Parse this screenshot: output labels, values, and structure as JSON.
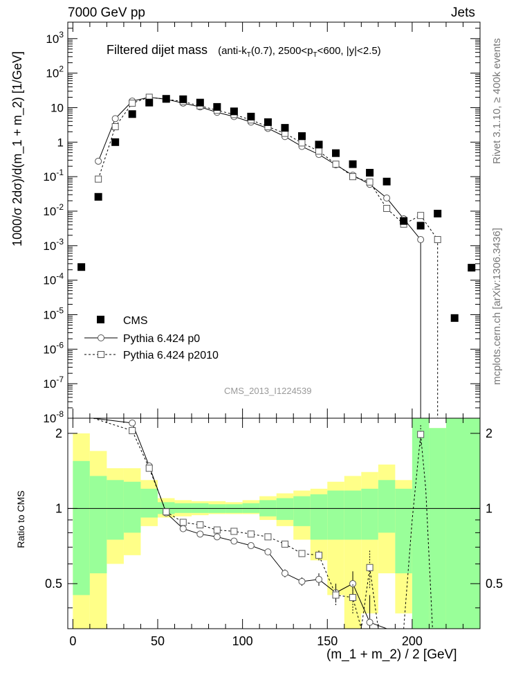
{
  "header": {
    "left": "7000 GeV pp",
    "right": "Jets"
  },
  "main_title": {
    "text": "Filtered dijet mass",
    "cuts": [
      "(anti-k",
      "T",
      "(0.7), 2500<p",
      "T",
      "<600, |y|<2.5)"
    ]
  },
  "side_labels": {
    "rivet": "Rivet 3.1.10, ≥ 400k events",
    "mcplots": "mcplots.cern.ch [arXiv:1306.3436]"
  },
  "analysis_id": "CMS_2013_I1224539",
  "colors": {
    "band_inner": "#99ff99",
    "band_outer": "#ffff88",
    "grid": "#000000"
  },
  "chart_data": [
    {
      "type": "scatter",
      "panel": "main",
      "ylabel": "1000/σ 2dσ)/d(m_1 + m_2) [1/GeV]",
      "yscale": "log",
      "ylim": [
        1e-08,
        3000
      ],
      "xlim": [
        -3,
        240
      ],
      "ytick_labels": [
        {
          "v": 1e-08,
          "m": "10",
          "e": "-8"
        },
        {
          "v": 1e-07,
          "m": "10",
          "e": "-7"
        },
        {
          "v": 1e-06,
          "m": "10",
          "e": "-6"
        },
        {
          "v": 1e-05,
          "m": "10",
          "e": "-5"
        },
        {
          "v": 0.0001,
          "m": "10",
          "e": "-4"
        },
        {
          "v": 0.001,
          "m": "10",
          "e": "-3"
        },
        {
          "v": 0.01,
          "m": "10",
          "e": "-2"
        },
        {
          "v": 0.1,
          "m": "10",
          "e": "-1"
        },
        {
          "v": 1,
          "m": "1",
          "e": ""
        },
        {
          "v": 10,
          "m": "10",
          "e": ""
        },
        {
          "v": 100,
          "m": "10",
          "e": "2"
        },
        {
          "v": 1000,
          "m": "10",
          "e": "3"
        }
      ],
      "legend": [
        {
          "label": "CMS",
          "style": "marker"
        },
        {
          "label": "Pythia 6.424 p0",
          "style": "solid-circle"
        },
        {
          "label": "Pythia 6.424 p2010",
          "style": "dashed-square"
        }
      ],
      "series": [
        {
          "name": "CMS",
          "x": [
            5,
            15,
            25,
            35,
            45,
            55,
            65,
            75,
            85,
            95,
            105,
            115,
            125,
            135,
            145,
            155,
            165,
            175,
            185,
            195,
            205,
            215,
            225,
            235
          ],
          "y": [
            0.00024,
            0.026,
            1.0,
            6.5,
            14,
            18,
            17.5,
            14,
            10.5,
            7.8,
            5.5,
            3.8,
            2.6,
            1.5,
            0.85,
            0.48,
            0.23,
            0.13,
            0.072,
            0.0052,
            0.0038,
            0.0085,
            8e-06,
            0.00023
          ]
        },
        {
          "name": "Pythia 6.424 p0",
          "x": [
            15,
            25,
            35,
            45,
            55,
            65,
            75,
            85,
            95,
            105,
            115,
            125,
            135,
            145,
            155,
            165,
            175,
            185,
            195,
            205
          ],
          "y": [
            0.28,
            4.8,
            15.5,
            20,
            17.5,
            13.5,
            10.5,
            7.3,
            5.5,
            3.8,
            2.5,
            1.45,
            0.75,
            0.44,
            0.22,
            0.11,
            0.06,
            0.024,
            0.006,
            0.0015
          ]
        },
        {
          "name": "Pythia 6.424 p2010",
          "x": [
            15,
            25,
            35,
            45,
            55,
            65,
            75,
            85,
            95,
            105,
            115,
            125,
            135,
            145,
            155,
            165,
            175,
            185,
            195,
            205,
            215
          ],
          "y": [
            0.085,
            2.8,
            13.5,
            20,
            17.5,
            15,
            11.2,
            8.4,
            6.3,
            4.4,
            2.8,
            1.8,
            0.95,
            0.55,
            0.23,
            0.1,
            0.07,
            0.012,
            0.0042,
            0.0075,
            0.0015
          ]
        }
      ]
    },
    {
      "type": "area",
      "panel": "ratio",
      "ylabel": "Ratio to CMS",
      "xlabel": "(m_1 + m_2) / 2 [GeV]",
      "ylim": [
        0.33,
        2.3
      ],
      "xlim": [
        -3,
        240
      ],
      "xticks": [
        0,
        50,
        100,
        150,
        200
      ],
      "yticks": [
        0.5,
        1,
        2
      ],
      "bands": {
        "bins": [
          0,
          10,
          20,
          30,
          40,
          50,
          60,
          70,
          80,
          90,
          100,
          110,
          120,
          130,
          140,
          150,
          160,
          170,
          180,
          190,
          200,
          210,
          220,
          240
        ],
        "outer_lo": [
          0.33,
          0.33,
          0.6,
          0.65,
          0.85,
          0.92,
          0.93,
          0.94,
          0.95,
          0.95,
          0.95,
          0.9,
          0.85,
          0.75,
          0.62,
          0.45,
          0.33,
          0.38,
          0.55,
          0.38,
          0.33,
          0.33,
          0.33
        ],
        "outer_hi": [
          2.0,
          1.7,
          1.45,
          1.45,
          1.3,
          1.1,
          1.08,
          1.07,
          1.07,
          1.06,
          1.08,
          1.12,
          1.15,
          1.18,
          1.2,
          1.28,
          1.35,
          1.4,
          1.5,
          1.3,
          2.3,
          2.1,
          2.3
        ],
        "inner_lo": [
          0.45,
          0.55,
          0.75,
          0.8,
          0.92,
          0.95,
          0.96,
          0.96,
          0.96,
          0.96,
          0.96,
          0.93,
          0.9,
          0.85,
          0.75,
          0.75,
          0.75,
          0.75,
          0.8,
          0.55,
          0.33,
          0.33,
          0.33
        ],
        "inner_hi": [
          1.55,
          1.35,
          1.3,
          1.28,
          1.2,
          1.06,
          1.05,
          1.05,
          1.04,
          1.04,
          1.05,
          1.08,
          1.1,
          1.12,
          1.14,
          1.18,
          1.18,
          1.2,
          1.3,
          1.2,
          2.3,
          2.1,
          2.3
        ]
      },
      "series": [
        {
          "name": "Pythia 6.424 p0",
          "x": [
            12,
            35,
            45,
            55,
            65,
            75,
            85,
            95,
            105,
            115,
            125,
            135,
            145,
            155,
            165,
            175,
            185,
            195,
            205
          ],
          "y": [
            3.2,
            2.2,
            1.48,
            0.96,
            0.83,
            0.79,
            0.77,
            0.74,
            0.71,
            0.67,
            0.55,
            0.51,
            0.52,
            0.46,
            0.5,
            0.35,
            0.25,
            0.25,
            0.33
          ],
          "err": [
            0,
            0,
            0.01,
            0.01,
            0.01,
            0.01,
            0.01,
            0.01,
            0.01,
            0.01,
            0.02,
            0.02,
            0.03,
            0.04,
            0.06,
            0.1,
            0,
            0,
            0
          ]
        },
        {
          "name": "Pythia 6.424 p2010",
          "x": [
            12,
            35,
            45,
            55,
            65,
            75,
            85,
            95,
            105,
            115,
            125,
            135,
            145,
            155,
            165,
            170,
            175,
            180,
            195,
            200,
            205,
            208,
            212
          ],
          "y": [
            3.2,
            2.05,
            1.45,
            0.97,
            0.88,
            0.86,
            0.82,
            0.81,
            0.79,
            0.77,
            0.72,
            0.66,
            0.65,
            0.45,
            0.44,
            0.33,
            0.58,
            0.33,
            0.33,
            0.9,
            1.98,
            1.2,
            0.33
          ],
          "err": [
            0,
            0,
            0.01,
            0.01,
            0.01,
            0.01,
            0.01,
            0.01,
            0.01,
            0.01,
            0.02,
            0.02,
            0.03,
            0.04,
            0.06,
            0,
            0.1,
            0,
            0,
            0,
            0.2,
            0,
            0
          ]
        }
      ]
    }
  ]
}
